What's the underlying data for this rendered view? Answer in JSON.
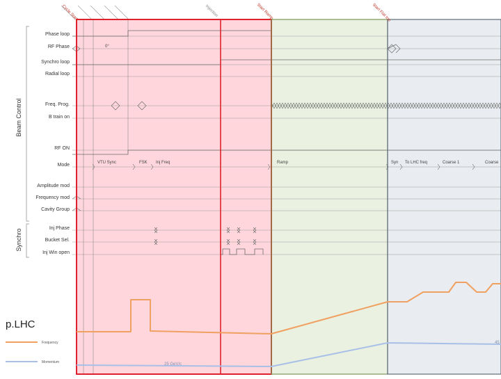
{
  "phase_labels": [
    {
      "text": "Cycle Start",
      "tone": "red"
    },
    {
      "text": "Injection",
      "tone": "grey"
    },
    {
      "text": "Start Ramp",
      "tone": "red"
    },
    {
      "text": "Start Flat top",
      "tone": "red"
    }
  ],
  "groups": {
    "beam_control": "Beam Control",
    "synchro": "Synchro"
  },
  "signals": [
    "Phase loop",
    "RF Phase",
    "Synchro loop",
    "Radial loop",
    "Freq. Prog.",
    "B train on",
    "RF ON",
    "Mode",
    "Amplitude mod",
    "Frequency mod",
    "Cavity Group",
    "Inj Phase",
    "Bucket Sel.",
    "Inj Win open"
  ],
  "inline": {
    "rf_phase_value": "0°",
    "mode_states": [
      "VTU Sync",
      "FSK",
      "Inj Freq",
      "Ramp",
      "Syn",
      "To LHC freq",
      "Coarse 1",
      "Coarse"
    ],
    "trace_note": "25 GeV/c",
    "trace_right": "45"
  },
  "plhc": {
    "title": "p.LHC",
    "legend": [
      "Frequency",
      "Momentum"
    ]
  },
  "colors": {
    "red_region": "#ffd6dc",
    "green_region": "#eaf1e1",
    "grey_region": "#e9ecf0",
    "red_border": "#e0202a",
    "green_border": "#7a9a5a",
    "grey_border": "#5f6b78",
    "frequency": "#f0a060",
    "momentum": "#a8c0e8"
  }
}
